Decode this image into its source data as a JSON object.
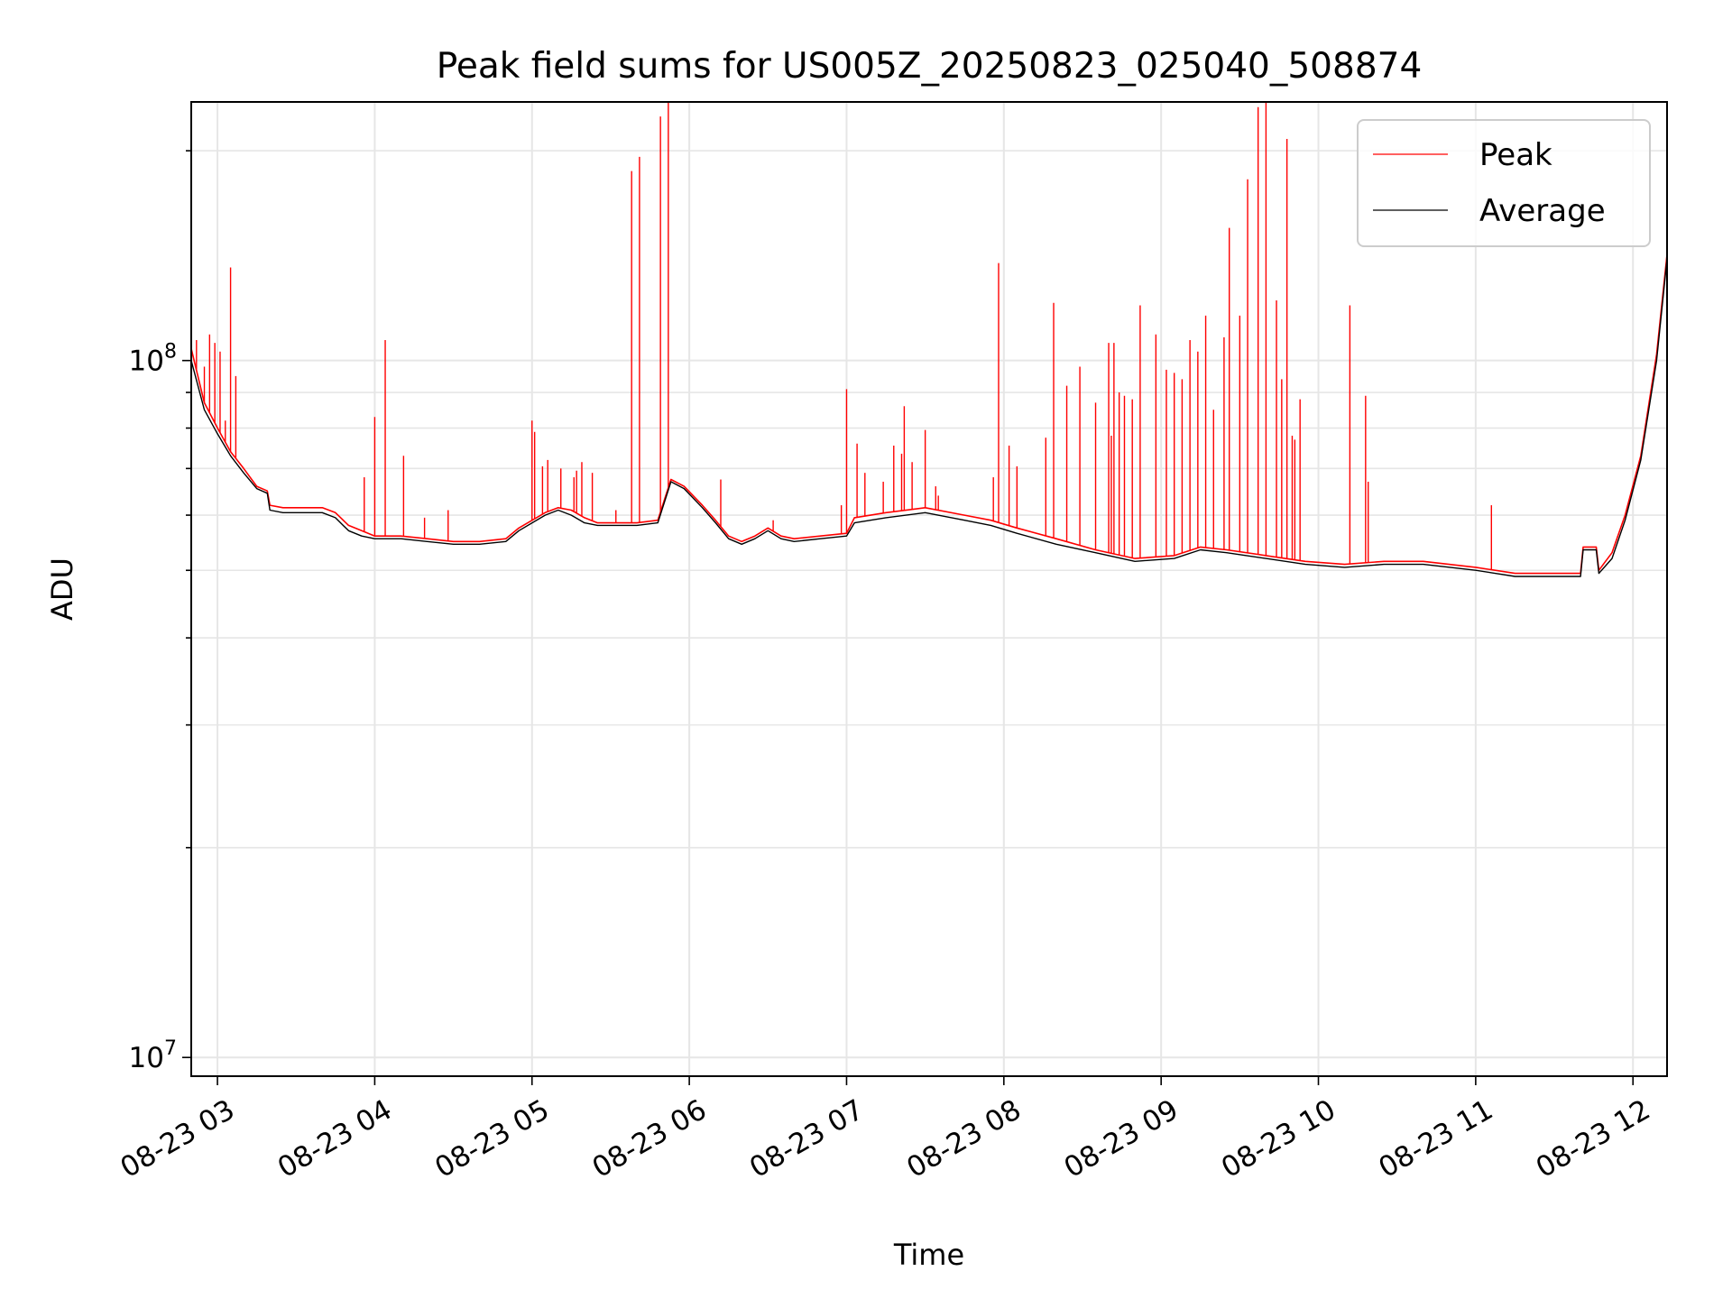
{
  "chart_data": {
    "type": "line",
    "title": "Peak field sums for US005Z_20250823_025040_508874",
    "xlabel": "Time",
    "ylabel": "ADU",
    "yscale": "log",
    "ylim": [
      9400000,
      235000000
    ],
    "xlim": [
      "2025-08-23 02:50",
      "2025-08-23 12:13"
    ],
    "x_ticks": [
      "08-23 03",
      "08-23 04",
      "08-23 05",
      "08-23 06",
      "08-23 07",
      "08-23 08",
      "08-23 09",
      "08-23 10",
      "08-23 11",
      "08-23 12"
    ],
    "y_ticks": [
      {
        "value": 10000000,
        "base": "10",
        "exp": "7"
      },
      {
        "value": 100000000,
        "base": "10",
        "exp": "8"
      }
    ],
    "grid": true,
    "legend_position": "upper right",
    "series": [
      {
        "name": "Peak",
        "color": "#ff0000",
        "baseline": [
          [
            "2025-08-23 02:50",
            104000000
          ],
          [
            "2025-08-23 02:55",
            87000000
          ],
          [
            "2025-08-23 03:00",
            80000000
          ],
          [
            "2025-08-23 03:05",
            74000000
          ],
          [
            "2025-08-23 03:10",
            70000000
          ],
          [
            "2025-08-23 03:15",
            66000000
          ],
          [
            "2025-08-23 03:19",
            65000000
          ],
          [
            "2025-08-23 03:20",
            62000000
          ],
          [
            "2025-08-23 03:25",
            61500000
          ],
          [
            "2025-08-23 03:30",
            61500000
          ],
          [
            "2025-08-23 03:40",
            61500000
          ],
          [
            "2025-08-23 03:45",
            60500000
          ],
          [
            "2025-08-23 03:50",
            58000000
          ],
          [
            "2025-08-23 03:55",
            57000000
          ],
          [
            "2025-08-23 04:00",
            56000000
          ],
          [
            "2025-08-23 04:10",
            56000000
          ],
          [
            "2025-08-23 04:20",
            55500000
          ],
          [
            "2025-08-23 04:30",
            55000000
          ],
          [
            "2025-08-23 04:40",
            55000000
          ],
          [
            "2025-08-23 04:50",
            55500000
          ],
          [
            "2025-08-23 04:55",
            57500000
          ],
          [
            "2025-08-23 05:05",
            60500000
          ],
          [
            "2025-08-23 05:10",
            61500000
          ],
          [
            "2025-08-23 05:15",
            61000000
          ],
          [
            "2025-08-23 05:20",
            59500000
          ],
          [
            "2025-08-23 05:25",
            58500000
          ],
          [
            "2025-08-23 05:30",
            58500000
          ],
          [
            "2025-08-23 05:40",
            58500000
          ],
          [
            "2025-08-23 05:48",
            59000000
          ],
          [
            "2025-08-23 05:53",
            67500000
          ],
          [
            "2025-08-23 05:58",
            66000000
          ],
          [
            "2025-08-23 06:05",
            62000000
          ],
          [
            "2025-08-23 06:10",
            59000000
          ],
          [
            "2025-08-23 06:15",
            56000000
          ],
          [
            "2025-08-23 06:20",
            55000000
          ],
          [
            "2025-08-23 06:25",
            56000000
          ],
          [
            "2025-08-23 06:30",
            57500000
          ],
          [
            "2025-08-23 06:35",
            56000000
          ],
          [
            "2025-08-23 06:40",
            55500000
          ],
          [
            "2025-08-23 06:50",
            56000000
          ],
          [
            "2025-08-23 07:00",
            56500000
          ],
          [
            "2025-08-23 07:03",
            59500000
          ],
          [
            "2025-08-23 07:15",
            60500000
          ],
          [
            "2025-08-23 07:30",
            61500000
          ],
          [
            "2025-08-23 07:45",
            60000000
          ],
          [
            "2025-08-23 07:55",
            59000000
          ],
          [
            "2025-08-23 08:05",
            57500000
          ],
          [
            "2025-08-23 08:20",
            55500000
          ],
          [
            "2025-08-23 08:35",
            53500000
          ],
          [
            "2025-08-23 08:50",
            52000000
          ],
          [
            "2025-08-23 09:05",
            52500000
          ],
          [
            "2025-08-23 09:15",
            54000000
          ],
          [
            "2025-08-23 09:25",
            53500000
          ],
          [
            "2025-08-23 09:40",
            52500000
          ],
          [
            "2025-08-23 09:55",
            51500000
          ],
          [
            "2025-08-23 10:10",
            51000000
          ],
          [
            "2025-08-23 10:25",
            51500000
          ],
          [
            "2025-08-23 10:40",
            51500000
          ],
          [
            "2025-08-23 11:00",
            50500000
          ],
          [
            "2025-08-23 11:15",
            49500000
          ],
          [
            "2025-08-23 11:30",
            49500000
          ],
          [
            "2025-08-23 11:40",
            49500000
          ],
          [
            "2025-08-23 11:41",
            54000000
          ],
          [
            "2025-08-23 11:46",
            54000000
          ],
          [
            "2025-08-23 11:47",
            50000000
          ],
          [
            "2025-08-23 11:52",
            53000000
          ],
          [
            "2025-08-23 11:57",
            60000000
          ],
          [
            "2025-08-23 12:03",
            73000000
          ],
          [
            "2025-08-23 12:09",
            102000000
          ],
          [
            "2025-08-23 12:13",
            142000000
          ]
        ],
        "spikes": [
          [
            "2025-08-23 02:52",
            107000000
          ],
          [
            "2025-08-23 02:55",
            98000000
          ],
          [
            "2025-08-23 02:57",
            109000000
          ],
          [
            "2025-08-23 02:59",
            106000000
          ],
          [
            "2025-08-23 03:01",
            103000000
          ],
          [
            "2025-08-23 03:03",
            82000000
          ],
          [
            "2025-08-23 03:05",
            136000000
          ],
          [
            "2025-08-23 03:07",
            95000000
          ],
          [
            "2025-08-23 03:56",
            68000000
          ],
          [
            "2025-08-23 04:00",
            83000000
          ],
          [
            "2025-08-23 04:04",
            107000000
          ],
          [
            "2025-08-23 04:11",
            73000000
          ],
          [
            "2025-08-23 04:19",
            59500000
          ],
          [
            "2025-08-23 04:28",
            61000000
          ],
          [
            "2025-08-23 05:00",
            82000000
          ],
          [
            "2025-08-23 05:01",
            79000000
          ],
          [
            "2025-08-23 05:04",
            70500000
          ],
          [
            "2025-08-23 05:06",
            72000000
          ],
          [
            "2025-08-23 05:11",
            70000000
          ],
          [
            "2025-08-23 05:16",
            68000000
          ],
          [
            "2025-08-23 05:17",
            69500000
          ],
          [
            "2025-08-23 05:19",
            71500000
          ],
          [
            "2025-08-23 05:23",
            69000000
          ],
          [
            "2025-08-23 05:32",
            61000000
          ],
          [
            "2025-08-23 05:38",
            187000000
          ],
          [
            "2025-08-23 05:41",
            196000000
          ],
          [
            "2025-08-23 05:49",
            224000000
          ],
          [
            "2025-08-23 05:52",
            238000000
          ],
          [
            "2025-08-23 06:12",
            67500000
          ],
          [
            "2025-08-23 06:32",
            59000000
          ],
          [
            "2025-08-23 06:58",
            62000000
          ],
          [
            "2025-08-23 07:00",
            91000000
          ],
          [
            "2025-08-23 07:04",
            76000000
          ],
          [
            "2025-08-23 07:07",
            69000000
          ],
          [
            "2025-08-23 07:14",
            67000000
          ],
          [
            "2025-08-23 07:18",
            75500000
          ],
          [
            "2025-08-23 07:21",
            73500000
          ],
          [
            "2025-08-23 07:22",
            86000000
          ],
          [
            "2025-08-23 07:25",
            71500000
          ],
          [
            "2025-08-23 07:30",
            79500000
          ],
          [
            "2025-08-23 07:34",
            66000000
          ],
          [
            "2025-08-23 07:35",
            64000000
          ],
          [
            "2025-08-23 07:56",
            68000000
          ],
          [
            "2025-08-23 07:58",
            138000000
          ],
          [
            "2025-08-23 08:02",
            75500000
          ],
          [
            "2025-08-23 08:05",
            70500000
          ],
          [
            "2025-08-23 08:16",
            77500000
          ],
          [
            "2025-08-23 08:19",
            121000000
          ],
          [
            "2025-08-23 08:24",
            92000000
          ],
          [
            "2025-08-23 08:29",
            98000000
          ],
          [
            "2025-08-23 08:35",
            87000000
          ],
          [
            "2025-08-23 08:40",
            106000000
          ],
          [
            "2025-08-23 08:42",
            106000000
          ],
          [
            "2025-08-23 08:41",
            78000000
          ],
          [
            "2025-08-23 08:44",
            90000000
          ],
          [
            "2025-08-23 08:46",
            89000000
          ],
          [
            "2025-08-23 08:49",
            88000000
          ],
          [
            "2025-08-23 08:52",
            120000000
          ],
          [
            "2025-08-23 08:58",
            109000000
          ],
          [
            "2025-08-23 09:02",
            97000000
          ],
          [
            "2025-08-23 09:05",
            96000000
          ],
          [
            "2025-08-23 09:08",
            94000000
          ],
          [
            "2025-08-23 09:11",
            107000000
          ],
          [
            "2025-08-23 09:14",
            103000000
          ],
          [
            "2025-08-23 09:17",
            116000000
          ],
          [
            "2025-08-23 09:20",
            85000000
          ],
          [
            "2025-08-23 09:24",
            108000000
          ],
          [
            "2025-08-23 09:26",
            155000000
          ],
          [
            "2025-08-23 09:30",
            116000000
          ],
          [
            "2025-08-23 09:33",
            182000000
          ],
          [
            "2025-08-23 09:37",
            231000000
          ],
          [
            "2025-08-23 09:40",
            238000000
          ],
          [
            "2025-08-23 09:44",
            122000000
          ],
          [
            "2025-08-23 09:46",
            94000000
          ],
          [
            "2025-08-23 09:48",
            208000000
          ],
          [
            "2025-08-23 09:50",
            78000000
          ],
          [
            "2025-08-23 09:51",
            77000000
          ],
          [
            "2025-08-23 09:53",
            88000000
          ],
          [
            "2025-08-23 10:12",
            120000000
          ],
          [
            "2025-08-23 10:18",
            89000000
          ],
          [
            "2025-08-23 10:19",
            67000000
          ],
          [
            "2025-08-23 11:06",
            62000000
          ]
        ]
      },
      {
        "name": "Average",
        "color": "#000000",
        "baseline": [
          [
            "2025-08-23 02:50",
            100000000
          ],
          [
            "2025-08-23 02:55",
            85000000
          ],
          [
            "2025-08-23 03:00",
            78500000
          ],
          [
            "2025-08-23 03:05",
            73000000
          ],
          [
            "2025-08-23 03:10",
            69000000
          ],
          [
            "2025-08-23 03:15",
            65500000
          ],
          [
            "2025-08-23 03:19",
            64500000
          ],
          [
            "2025-08-23 03:20",
            61000000
          ],
          [
            "2025-08-23 03:25",
            60500000
          ],
          [
            "2025-08-23 03:30",
            60500000
          ],
          [
            "2025-08-23 03:40",
            60500000
          ],
          [
            "2025-08-23 03:45",
            59500000
          ],
          [
            "2025-08-23 03:50",
            57000000
          ],
          [
            "2025-08-23 03:55",
            56000000
          ],
          [
            "2025-08-23 04:00",
            55500000
          ],
          [
            "2025-08-23 04:10",
            55500000
          ],
          [
            "2025-08-23 04:20",
            55000000
          ],
          [
            "2025-08-23 04:30",
            54500000
          ],
          [
            "2025-08-23 04:40",
            54500000
          ],
          [
            "2025-08-23 04:50",
            55000000
          ],
          [
            "2025-08-23 04:55",
            57000000
          ],
          [
            "2025-08-23 05:05",
            60000000
          ],
          [
            "2025-08-23 05:10",
            61000000
          ],
          [
            "2025-08-23 05:15",
            60000000
          ],
          [
            "2025-08-23 05:20",
            58500000
          ],
          [
            "2025-08-23 05:25",
            58000000
          ],
          [
            "2025-08-23 05:30",
            58000000
          ],
          [
            "2025-08-23 05:40",
            58000000
          ],
          [
            "2025-08-23 05:48",
            58500000
          ],
          [
            "2025-08-23 05:53",
            67000000
          ],
          [
            "2025-08-23 05:58",
            65500000
          ],
          [
            "2025-08-23 06:05",
            61500000
          ],
          [
            "2025-08-23 06:10",
            58500000
          ],
          [
            "2025-08-23 06:15",
            55500000
          ],
          [
            "2025-08-23 06:20",
            54500000
          ],
          [
            "2025-08-23 06:25",
            55500000
          ],
          [
            "2025-08-23 06:30",
            57000000
          ],
          [
            "2025-08-23 06:35",
            55500000
          ],
          [
            "2025-08-23 06:40",
            55000000
          ],
          [
            "2025-08-23 06:50",
            55500000
          ],
          [
            "2025-08-23 07:00",
            56000000
          ],
          [
            "2025-08-23 07:03",
            58500000
          ],
          [
            "2025-08-23 07:15",
            59500000
          ],
          [
            "2025-08-23 07:30",
            60500000
          ],
          [
            "2025-08-23 07:45",
            59000000
          ],
          [
            "2025-08-23 07:55",
            58000000
          ],
          [
            "2025-08-23 08:05",
            56500000
          ],
          [
            "2025-08-23 08:20",
            54500000
          ],
          [
            "2025-08-23 08:35",
            53000000
          ],
          [
            "2025-08-23 08:50",
            51500000
          ],
          [
            "2025-08-23 09:05",
            52000000
          ],
          [
            "2025-08-23 09:15",
            53500000
          ],
          [
            "2025-08-23 09:25",
            53000000
          ],
          [
            "2025-08-23 09:40",
            52000000
          ],
          [
            "2025-08-23 09:55",
            51000000
          ],
          [
            "2025-08-23 10:10",
            50500000
          ],
          [
            "2025-08-23 10:25",
            51000000
          ],
          [
            "2025-08-23 10:40",
            51000000
          ],
          [
            "2025-08-23 11:00",
            50000000
          ],
          [
            "2025-08-23 11:15",
            49000000
          ],
          [
            "2025-08-23 11:30",
            49000000
          ],
          [
            "2025-08-23 11:40",
            49000000
          ],
          [
            "2025-08-23 11:41",
            53500000
          ],
          [
            "2025-08-23 11:46",
            53500000
          ],
          [
            "2025-08-23 11:47",
            49500000
          ],
          [
            "2025-08-23 11:52",
            52000000
          ],
          [
            "2025-08-23 11:57",
            59000000
          ],
          [
            "2025-08-23 12:03",
            72000000
          ],
          [
            "2025-08-23 12:09",
            100000000
          ],
          [
            "2025-08-23 12:13",
            140000000
          ]
        ]
      }
    ]
  }
}
